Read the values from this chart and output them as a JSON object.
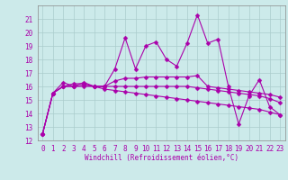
{
  "xlabel": "Windchill (Refroidissement éolien,°C)",
  "bg_color": "#cceaea",
  "grid_color": "#aacccc",
  "line_color": "#aa00aa",
  "spine_color": "#888888",
  "xlim": [
    -0.5,
    23.5
  ],
  "ylim": [
    12,
    22
  ],
  "yticks": [
    12,
    13,
    14,
    15,
    16,
    17,
    18,
    19,
    20,
    21
  ],
  "xticks": [
    0,
    1,
    2,
    3,
    4,
    5,
    6,
    7,
    8,
    9,
    10,
    11,
    12,
    13,
    14,
    15,
    16,
    17,
    18,
    19,
    20,
    21,
    22,
    23
  ],
  "series": [
    [
      12.5,
      15.5,
      16.3,
      16.0,
      16.3,
      16.0,
      16.0,
      17.3,
      19.6,
      17.3,
      19.0,
      19.3,
      18.0,
      17.5,
      19.2,
      21.3,
      19.2,
      19.5,
      16.0,
      13.2,
      15.3,
      16.5,
      14.5,
      13.9
    ],
    [
      12.5,
      15.5,
      16.0,
      16.0,
      16.1,
      16.0,
      16.0,
      16.4,
      16.6,
      16.6,
      16.7,
      16.7,
      16.7,
      16.7,
      16.7,
      16.8,
      16.0,
      15.9,
      15.8,
      15.7,
      15.6,
      15.5,
      15.4,
      15.2
    ],
    [
      12.5,
      15.5,
      16.0,
      16.0,
      16.0,
      16.0,
      16.0,
      16.0,
      16.0,
      16.0,
      16.0,
      16.0,
      16.0,
      16.0,
      16.0,
      15.9,
      15.8,
      15.7,
      15.6,
      15.5,
      15.4,
      15.3,
      15.1,
      14.8
    ],
    [
      12.5,
      15.5,
      16.0,
      16.2,
      16.2,
      16.0,
      15.8,
      15.7,
      15.6,
      15.5,
      15.4,
      15.3,
      15.2,
      15.1,
      15.0,
      14.9,
      14.8,
      14.7,
      14.6,
      14.5,
      14.4,
      14.3,
      14.1,
      13.9
    ]
  ],
  "marker": "D",
  "markersize": 2.5,
  "linewidth": 0.8,
  "tick_fontsize": 5.5,
  "xlabel_fontsize": 5.5
}
